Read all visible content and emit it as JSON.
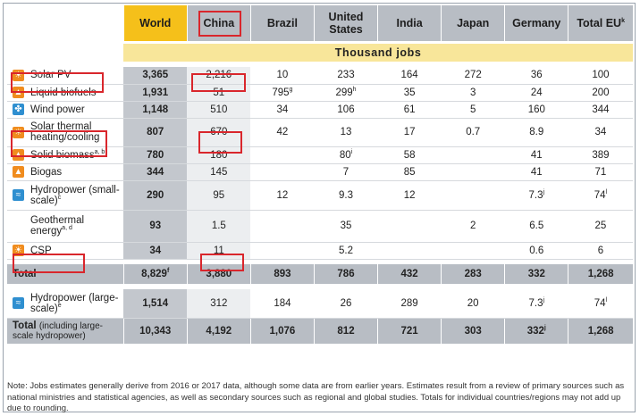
{
  "columns": {
    "world": "World",
    "china": "China",
    "brazil": "Brazil",
    "us": "United States",
    "india": "India",
    "japan": "Japan",
    "germany": "Germany",
    "eu": "Total EU",
    "eu_sup": "k"
  },
  "unit": "Thousand jobs",
  "rows": [
    {
      "label": "Solar PV",
      "icon": "sun-icon",
      "world": "3,365",
      "china": "2,216",
      "brazil": "10",
      "us": "233",
      "india": "164",
      "japan": "272",
      "germany": "36",
      "eu": "100"
    },
    {
      "label": "Liquid biofuels",
      "icon": "fire-icon",
      "world": "1,931",
      "china": "51",
      "brazil": "795",
      "brazil_sup": "g",
      "us": "299",
      "us_sup": "h",
      "india": "35",
      "japan": "3",
      "germany": "24",
      "eu": "200"
    },
    {
      "label": "Wind power",
      "icon": "wind-turbine-icon",
      "world": "1,148",
      "china": "510",
      "brazil": "34",
      "us": "106",
      "india": "61",
      "japan": "5",
      "germany": "160",
      "eu": "344"
    },
    {
      "label": "Solar thermal heating/cooling",
      "icon": "sun-icon",
      "world": "807",
      "china": "670",
      "brazil": "42",
      "us": "13",
      "india": "17",
      "japan": "0.7",
      "germany": "8.9",
      "eu": "34"
    },
    {
      "label": "Solid biomass",
      "label_sup": "a, b",
      "icon": "fire-icon",
      "world": "780",
      "china": "180",
      "brazil": "",
      "us": "80",
      "us_sup": "i",
      "india": "58",
      "japan": "",
      "germany": "41",
      "eu": "389"
    },
    {
      "label": "Biogas",
      "icon": "fire-icon",
      "world": "344",
      "china": "145",
      "brazil": "",
      "us": "7",
      "india": "85",
      "japan": "",
      "germany": "41",
      "eu": "71"
    },
    {
      "label": "Hydropower (small-scale)",
      "label_sup": "c",
      "icon": "water-icon",
      "world": "290",
      "china": "95",
      "brazil": "12",
      "us": "9.3",
      "india": "12",
      "japan": "",
      "germany": "7.3",
      "germany_sup": "j",
      "eu": "74",
      "eu_sup": "l"
    },
    {
      "label": "Geothermal energy",
      "label_sup": "a, d",
      "icon": "",
      "world": "93",
      "china": "1.5",
      "brazil": "",
      "us": "35",
      "india": "",
      "japan": "2",
      "germany": "6.5",
      "eu": "25"
    },
    {
      "label": "CSP",
      "icon": "sun-icon",
      "world": "34",
      "china": "11",
      "brazil": "",
      "us": "5.2",
      "india": "",
      "japan": "",
      "germany": "0.6",
      "eu": "6"
    }
  ],
  "total": {
    "label": "Total",
    "world": "8,829",
    "world_sup": "f",
    "china": "3,880",
    "brazil": "893",
    "us": "786",
    "india": "432",
    "japan": "283",
    "germany": "332",
    "eu": "1,268"
  },
  "hydro_large": {
    "label": "Hydropower (large-scale)",
    "label_sup": "e",
    "icon": "water-icon",
    "world": "1,514",
    "china": "312",
    "brazil": "184",
    "us": "26",
    "india": "289",
    "japan": "20",
    "germany": "7.3",
    "germany_sup": "j",
    "eu": "74",
    "eu_sup": "l"
  },
  "grand_total": {
    "label": "Total",
    "label_small": "(including large-scale hydropower)",
    "world": "10,343",
    "china": "4,192",
    "brazil": "1,076",
    "us": "812",
    "india": "721",
    "japan": "303",
    "germany": "332",
    "germany_sup": "j",
    "eu": "1,268"
  },
  "note": "Note: Jobs estimates generally derive from 2016 or 2017 data, although some data are from earlier years. Estimates result from a review of primary sources such as national ministries and statistical agencies, as well as secondary sources such as regional and global studies. Totals for individual countries/regions may not add up due to rounding.",
  "colors": {
    "world_header": "#f5c01a",
    "unit_band": "#f8e69a",
    "highlight": "#d9262c",
    "icon_orange": "#f08c1e",
    "icon_blue": "#2f8fd0"
  }
}
